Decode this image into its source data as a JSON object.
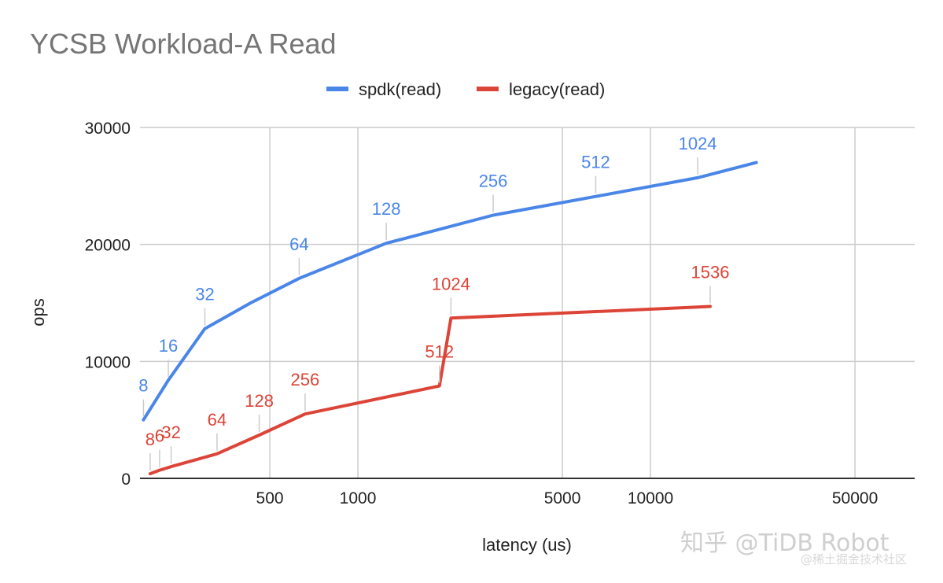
{
  "chart_data": {
    "type": "line",
    "title": "YCSB Workload-A Read",
    "xlabel": "latency (us)",
    "ylabel": "ops",
    "xscale": "log",
    "xlim": [
      180,
      80000
    ],
    "ylim": [
      0,
      30000
    ],
    "yticks": [
      0,
      10000,
      20000,
      30000
    ],
    "xticks": [
      500,
      1000,
      5000,
      10000,
      50000
    ],
    "grid": true,
    "legend": "top",
    "series": [
      {
        "name": "spdk(read)",
        "color": "#4a86e8",
        "points": [
          {
            "x": 185,
            "y": 5000,
            "label": ""
          },
          {
            "x": 225,
            "y": 8400,
            "label": ""
          },
          {
            "x": 300,
            "y": 12800,
            "label": ""
          },
          {
            "x": 430,
            "y": 15000,
            "label": ""
          },
          {
            "x": 630,
            "y": 17100,
            "label": ""
          },
          {
            "x": 1250,
            "y": 20100,
            "label": ""
          },
          {
            "x": 2900,
            "y": 22500,
            "label": ""
          },
          {
            "x": 6500,
            "y": 24100,
            "label": ""
          },
          {
            "x": 14500,
            "y": 25700,
            "label": ""
          },
          {
            "x": 23000,
            "y": 27000,
            "label": ""
          }
        ],
        "point_labels": [
          {
            "x": 185,
            "y": 5000,
            "label": "8"
          },
          {
            "x": 225,
            "y": 8400,
            "label": "16"
          },
          {
            "x": 300,
            "y": 12800,
            "label": "32"
          },
          {
            "x": 630,
            "y": 17100,
            "label": "64"
          },
          {
            "x": 1250,
            "y": 20100,
            "label": "128"
          },
          {
            "x": 2900,
            "y": 22500,
            "label": "256"
          },
          {
            "x": 6500,
            "y": 24100,
            "label": "512"
          },
          {
            "x": 14500,
            "y": 25700,
            "label": "1024"
          }
        ]
      },
      {
        "name": "legacy(read)",
        "color": "#dc4437",
        "points": [
          {
            "x": 195,
            "y": 400
          },
          {
            "x": 210,
            "y": 700
          },
          {
            "x": 230,
            "y": 1000
          },
          {
            "x": 330,
            "y": 2100
          },
          {
            "x": 460,
            "y": 3700
          },
          {
            "x": 660,
            "y": 5500
          },
          {
            "x": 1900,
            "y": 7900
          },
          {
            "x": 2080,
            "y": 13700
          },
          {
            "x": 16000,
            "y": 14700
          }
        ],
        "point_labels": [
          {
            "x": 195,
            "y": 400,
            "label": "8"
          },
          {
            "x": 210,
            "y": 700,
            "label": "6"
          },
          {
            "x": 230,
            "y": 1000,
            "label": "32"
          },
          {
            "x": 330,
            "y": 2100,
            "label": "64"
          },
          {
            "x": 460,
            "y": 3700,
            "label": "128"
          },
          {
            "x": 660,
            "y": 5500,
            "label": "256"
          },
          {
            "x": 1900,
            "y": 7900,
            "label": "512"
          },
          {
            "x": 2080,
            "y": 13700,
            "label": "1024"
          },
          {
            "x": 16000,
            "y": 14700,
            "label": "1536"
          }
        ]
      }
    ]
  },
  "watermark": {
    "main": "知乎 @TiDB Robot",
    "sub": "@稀土掘金技术社区"
  }
}
